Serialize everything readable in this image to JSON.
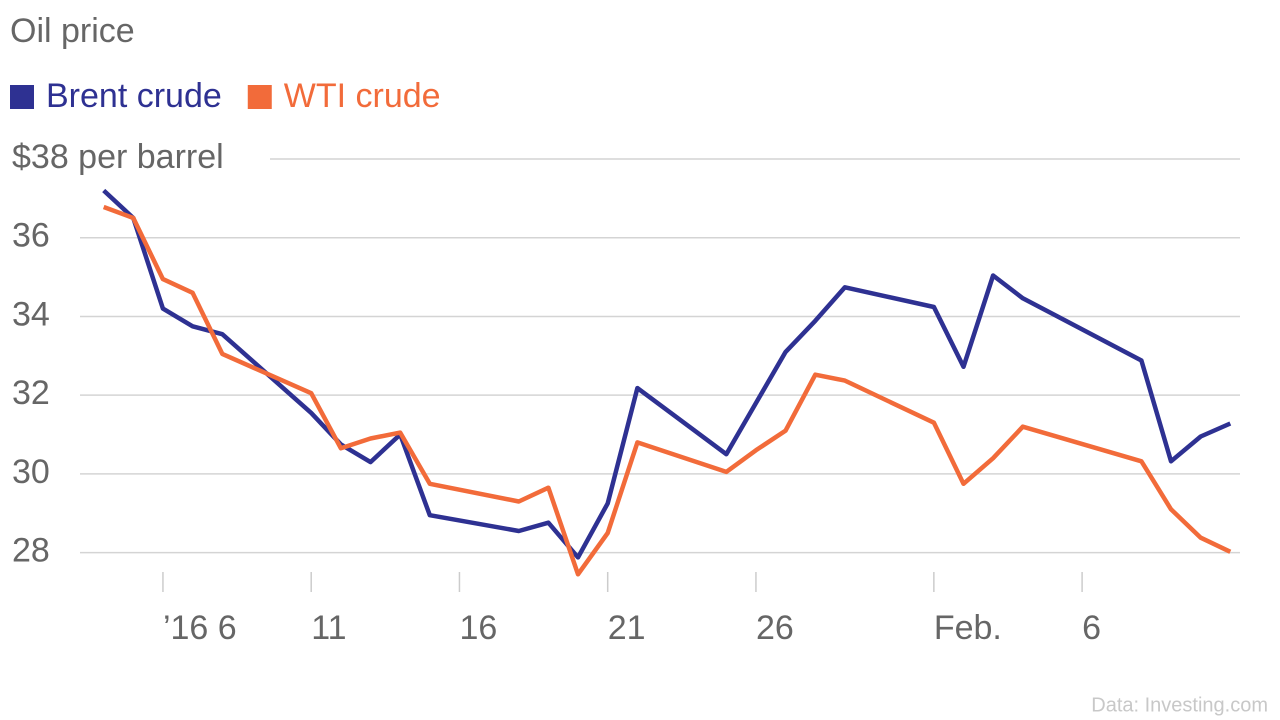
{
  "chart_data": {
    "type": "line",
    "title": "Oil price",
    "source": "Data: Investing.com",
    "x": [
      "2016-01-04",
      "2016-01-05",
      "2016-01-06",
      "2016-01-07",
      "2016-01-08",
      "2016-01-11",
      "2016-01-12",
      "2016-01-13",
      "2016-01-14",
      "2016-01-15",
      "2016-01-18",
      "2016-01-19",
      "2016-01-20",
      "2016-01-21",
      "2016-01-22",
      "2016-01-25",
      "2016-01-26",
      "2016-01-27",
      "2016-01-28",
      "2016-01-29",
      "2016-02-01",
      "2016-02-02",
      "2016-02-03",
      "2016-02-04",
      "2016-02-05",
      "2016-02-08",
      "2016-02-09",
      "2016-02-10",
      "2016-02-11"
    ],
    "series": [
      {
        "name": "Brent crude",
        "color": "#2e3192",
        "values": [
          37.2,
          36.5,
          34.2,
          33.75,
          33.55,
          31.55,
          30.75,
          30.3,
          31.0,
          28.95,
          28.55,
          28.76,
          27.88,
          29.25,
          32.18,
          30.5,
          31.8,
          33.1,
          33.89,
          34.74,
          34.24,
          32.72,
          35.04,
          34.46,
          34.07,
          32.88,
          30.32,
          30.95,
          31.28
        ]
      },
      {
        "name": "WTI crude",
        "color": "#f26b3a",
        "values": [
          36.78,
          36.5,
          34.95,
          34.6,
          33.05,
          32.05,
          30.65,
          30.9,
          31.05,
          29.75,
          29.3,
          29.65,
          27.45,
          28.5,
          30.8,
          30.05,
          30.6,
          31.1,
          32.52,
          32.37,
          31.3,
          29.75,
          30.4,
          31.2,
          30.98,
          30.32,
          29.1,
          28.38,
          28.02
        ]
      }
    ],
    "xlim": [
      "2016-01-03",
      "2016-02-12"
    ],
    "xticks": [
      {
        "value": "2016-01-06",
        "label": "’16 6"
      },
      {
        "value": "2016-01-11",
        "label": "11"
      },
      {
        "value": "2016-01-16",
        "label": "16"
      },
      {
        "value": "2016-01-21",
        "label": "21"
      },
      {
        "value": "2016-01-26",
        "label": "26"
      },
      {
        "value": "2016-02-01",
        "label": "Feb."
      },
      {
        "value": "2016-02-06",
        "label": "6"
      }
    ],
    "ylim": [
      27,
      38
    ],
    "yticks": [
      28,
      30,
      32,
      34,
      36,
      {
        "value": 38,
        "label": "$38 per barrel"
      }
    ],
    "grid": true
  }
}
